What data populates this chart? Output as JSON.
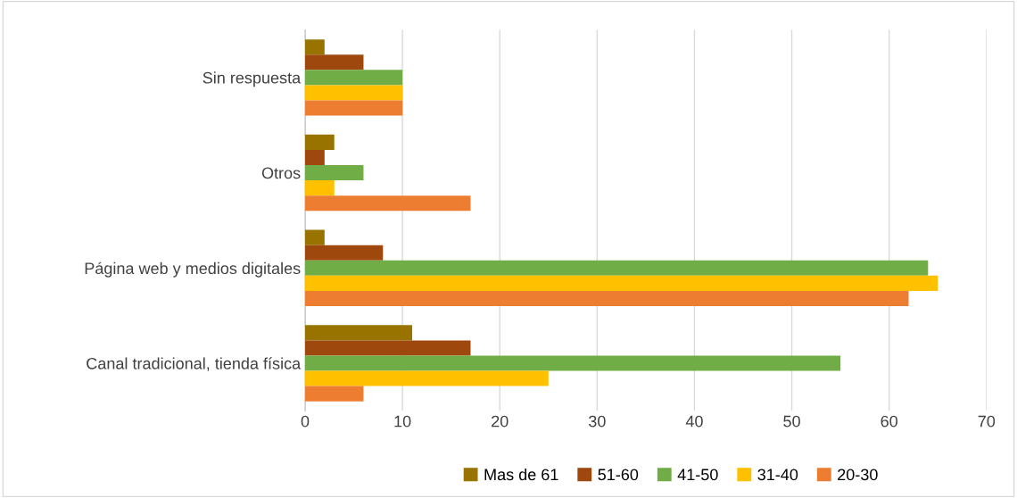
{
  "chart_data": {
    "type": "bar",
    "orientation": "horizontal",
    "categories": [
      "Sin respuesta",
      "Otros",
      "Página web y medios digitales",
      "Canal tradicional, tienda física"
    ],
    "series": [
      {
        "name": "Mas de 61",
        "color": "#997300",
        "values": [
          2,
          3,
          2,
          11
        ]
      },
      {
        "name": "51-60",
        "color": "#9e480e",
        "values": [
          6,
          2,
          8,
          17
        ]
      },
      {
        "name": "41-50",
        "color": "#70ad47",
        "values": [
          10,
          6,
          64,
          55
        ]
      },
      {
        "name": "31-40",
        "color": "#ffc000",
        "values": [
          10,
          3,
          65,
          25
        ]
      },
      {
        "name": "20-30",
        "color": "#ed7d31",
        "values": [
          10,
          17,
          62,
          6
        ]
      }
    ],
    "xlim": [
      0,
      70
    ],
    "xticks": [
      0,
      10,
      20,
      30,
      40,
      50,
      60,
      70
    ],
    "grid": "x",
    "legend": "bottom"
  }
}
